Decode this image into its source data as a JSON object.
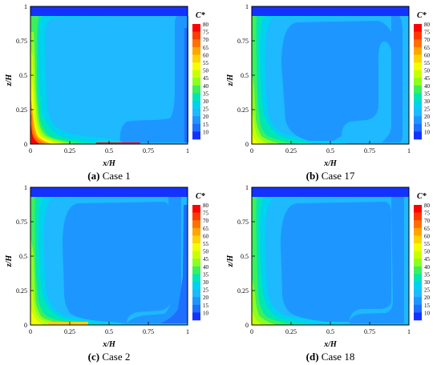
{
  "chart_data": [
    {
      "type": "heatmap",
      "caption_letter": "(a)",
      "caption_text": " Case 1",
      "xlabel": "x/H",
      "ylabel": "z/H",
      "colorbar_title": "C*",
      "xlim": [
        0,
        1
      ],
      "ylim": [
        0,
        1
      ],
      "x_ticks": [
        "0",
        "0.25",
        "0.5",
        "0.75",
        "1"
      ],
      "y_ticks": [
        "0",
        "0.25",
        "0.5",
        "0.75",
        "1"
      ],
      "colorbar_levels": [
        "80",
        "75",
        "70",
        "65",
        "60",
        "55",
        "50",
        "45",
        "40",
        "35",
        "30",
        "25",
        "20",
        "15",
        "10"
      ]
    },
    {
      "type": "heatmap",
      "caption_letter": "(b)",
      "caption_text": " Case 17",
      "xlabel": "x/H",
      "ylabel": "z/H",
      "colorbar_title": "C*",
      "xlim": [
        0,
        1
      ],
      "ylim": [
        0,
        1
      ],
      "x_ticks": [
        "0",
        "0.25",
        "0.5",
        "0.75",
        "1"
      ],
      "y_ticks": [
        "0",
        "0.25",
        "0.5",
        "0.75",
        "1"
      ],
      "colorbar_levels": [
        "80",
        "75",
        "70",
        "65",
        "60",
        "55",
        "50",
        "45",
        "40",
        "35",
        "30",
        "25",
        "20",
        "15",
        "10"
      ]
    },
    {
      "type": "heatmap",
      "caption_letter": "(c)",
      "caption_text": " Case 2",
      "xlabel": "x/H",
      "ylabel": "z/H",
      "colorbar_title": "C*",
      "xlim": [
        0,
        1
      ],
      "ylim": [
        0,
        1
      ],
      "x_ticks": [
        "0",
        "0.25",
        "0.5",
        "0.75",
        "1"
      ],
      "y_ticks": [
        "0",
        "0.25",
        "0.5",
        "0.75",
        "1"
      ],
      "colorbar_levels": [
        "80",
        "75",
        "70",
        "65",
        "60",
        "55",
        "50",
        "45",
        "40",
        "35",
        "30",
        "25",
        "20",
        "15",
        "10"
      ]
    },
    {
      "type": "heatmap",
      "caption_letter": "(d)",
      "caption_text": " Case 18",
      "xlabel": "x/H",
      "ylabel": "z/H",
      "colorbar_title": "C*",
      "xlim": [
        0,
        1
      ],
      "ylim": [
        0,
        1
      ],
      "x_ticks": [
        "0",
        "0.25",
        "0.5",
        "0.75",
        "1"
      ],
      "y_ticks": [
        "0",
        "0.25",
        "0.5",
        "0.75",
        "1"
      ],
      "colorbar_levels": [
        "80",
        "75",
        "70",
        "65",
        "60",
        "55",
        "50",
        "45",
        "40",
        "35",
        "30",
        "25",
        "20",
        "15",
        "10"
      ]
    }
  ],
  "colorbar_colors": [
    "#ff0000",
    "#ff3a00",
    "#ff7000",
    "#ffa500",
    "#ffd200",
    "#f2ff00",
    "#c8ff00",
    "#8cff1e",
    "#3cf05a",
    "#00e6b4",
    "#00d2f0",
    "#1eb9ff",
    "#1e96ff",
    "#1e6eff",
    "#1432ff"
  ]
}
